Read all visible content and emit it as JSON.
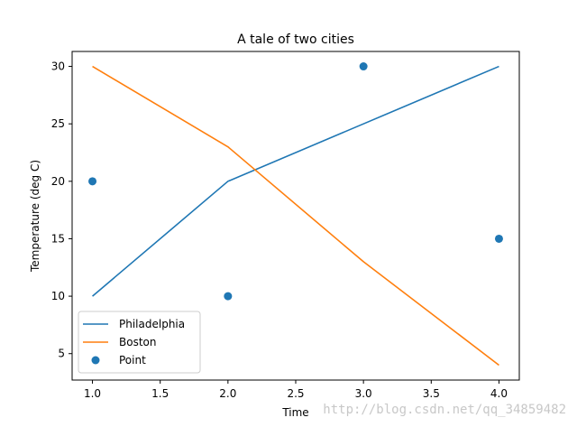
{
  "chart_data": {
    "type": "line",
    "title": "A tale of two cities",
    "xlabel": "Time",
    "ylabel": "Temperature (deg C)",
    "xlim": [
      0.85,
      4.15
    ],
    "ylim": [
      2.7,
      31.3
    ],
    "xticks": [
      1.0,
      1.5,
      2.0,
      2.5,
      3.0,
      3.5,
      4.0
    ],
    "xtick_labels": [
      "1.0",
      "1.5",
      "2.0",
      "2.5",
      "3.0",
      "3.5",
      "4.0"
    ],
    "yticks": [
      5,
      10,
      15,
      20,
      25,
      30
    ],
    "ytick_labels": [
      "5",
      "10",
      "15",
      "20",
      "25",
      "30"
    ],
    "grid": false,
    "legend_location": "lower-left",
    "series": [
      {
        "name": "Philadelphia",
        "kind": "line",
        "color": "#1f77b4",
        "x": [
          1,
          2,
          3,
          4
        ],
        "y": [
          10,
          20,
          25,
          30
        ]
      },
      {
        "name": "Boston",
        "kind": "line",
        "color": "#ff7f0e",
        "x": [
          1,
          2,
          3,
          4
        ],
        "y": [
          30,
          23,
          13,
          4
        ]
      },
      {
        "name": "Point",
        "kind": "scatter",
        "color": "#1f77b4",
        "x": [
          1,
          2,
          3,
          4
        ],
        "y": [
          20,
          10,
          30,
          15
        ]
      }
    ]
  },
  "watermark": "http://blog.csdn.net/qq_34859482"
}
